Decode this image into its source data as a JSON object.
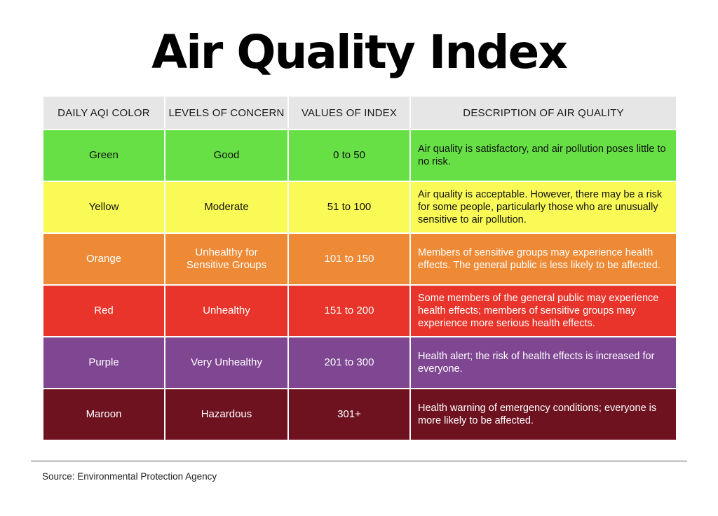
{
  "title": "Air Quality Index",
  "columns": {
    "color": "DAILY AQI COLOR",
    "concern": "LEVELS OF CONCERN",
    "values": "VALUES OF INDEX",
    "description": "DESCRIPTION OF AIR QUALITY"
  },
  "rows": [
    {
      "color_name": "Green",
      "concern": "Good",
      "values": "0 to 50",
      "description": "Air quality is satisfactory, and air pollution poses little to no risk.",
      "swatch": "#67e046"
    },
    {
      "color_name": "Yellow",
      "concern": "Moderate",
      "values": "51 to 100",
      "description": "Air quality is acceptable. However, there may be a risk for some people, particularly those who are unusually sensitive to air pollution.",
      "swatch": "#fafa57"
    },
    {
      "color_name": "Orange",
      "concern": "Unhealthy for Sensitive Groups",
      "values": "101 to 150",
      "description": "Members of sensitive groups may experience health effects. The general public is less likely to be affected.",
      "swatch": "#ee8a35"
    },
    {
      "color_name": "Red",
      "concern": "Unhealthy",
      "values": "151 to 200",
      "description": "Some members of the general public may experience health effects; members of sensitive groups may experience more serious health effects.",
      "swatch": "#e8342a"
    },
    {
      "color_name": "Purple",
      "concern": "Very Unhealthy",
      "values": "201 to 300",
      "description": "Health alert; the risk of health effects is increased for everyone.",
      "swatch": "#7f4692"
    },
    {
      "color_name": "Maroon",
      "concern": "Hazardous",
      "values": "301+",
      "description": "Health warning of emergency conditions; everyone is more likely to be affected.",
      "swatch": "#6e1220"
    }
  ],
  "source": "Source: Environmental Protection Agency"
}
